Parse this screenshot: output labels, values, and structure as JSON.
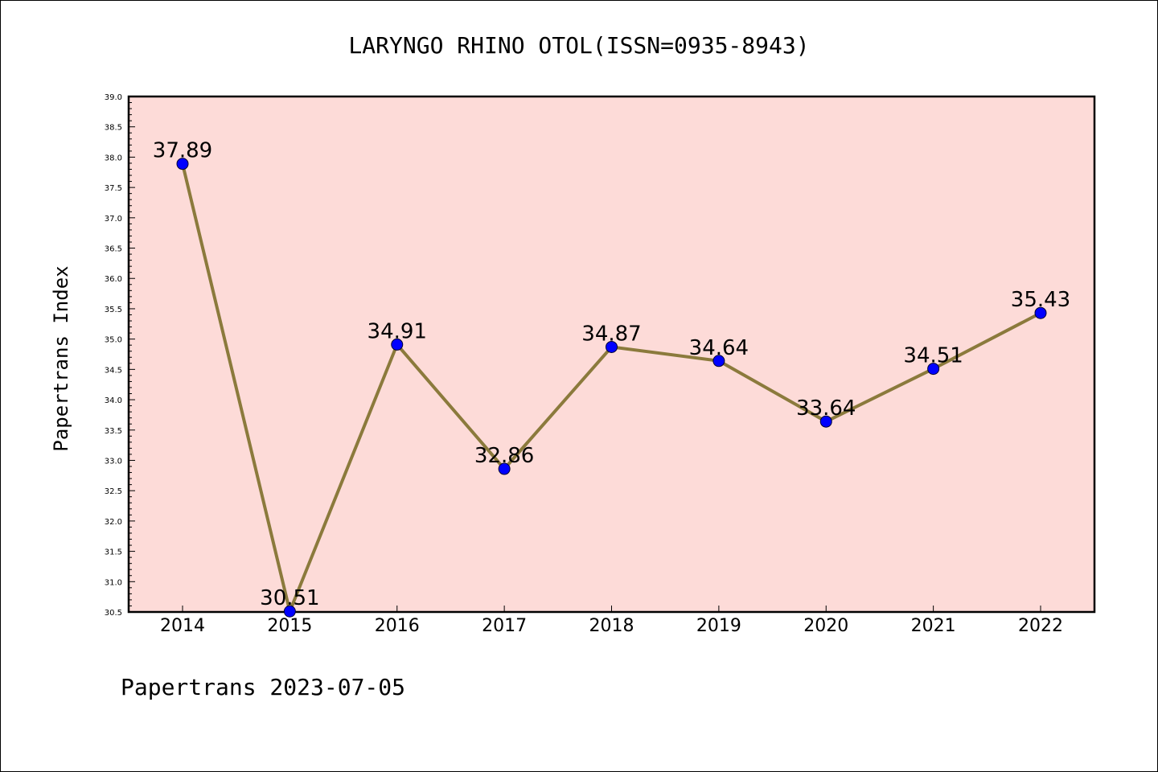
{
  "chart_data": {
    "type": "line",
    "title": "LARYNGO RHINO OTOL(ISSN=0935-8943)",
    "ylabel": "Papertrans Index",
    "xlabel": "",
    "categories": [
      "2014",
      "2015",
      "2016",
      "2017",
      "2018",
      "2019",
      "2020",
      "2021",
      "2022"
    ],
    "values": [
      37.89,
      30.51,
      34.91,
      32.86,
      34.87,
      34.64,
      33.64,
      34.51,
      35.43
    ],
    "data_labels": [
      "37.89",
      "30.51",
      "34.91",
      "32.86",
      "34.87",
      "34.64",
      "33.64",
      "34.51",
      "35.43"
    ],
    "ylim": [
      30.5,
      39.0
    ],
    "yticks": [
      "30.5",
      "31.0",
      "31.5",
      "32.0",
      "32.5",
      "33.0",
      "33.5",
      "34.0",
      "34.5",
      "35.0",
      "35.5",
      "36.0",
      "36.5",
      "37.0",
      "37.5",
      "38.0",
      "38.5",
      "39.0"
    ],
    "grid": false,
    "colors": {
      "plot_background": "#fddbd8",
      "line": "#8b7a3c",
      "marker": "#0000ff"
    }
  },
  "footer": "Papertrans 2023-07-05"
}
